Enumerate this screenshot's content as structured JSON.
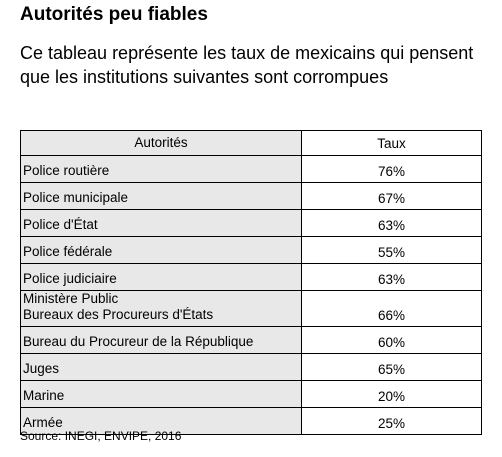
{
  "header": {
    "title": "Autorités peu fiables",
    "subtitle": "Ce tableau représente les taux de mexicains qui pensent que les institutions suivantes sont corrompues"
  },
  "table": {
    "columns": [
      "Autorités",
      "Taux"
    ],
    "rows": [
      [
        "Police routière",
        "76%"
      ],
      [
        "Police municipale",
        "67%"
      ],
      [
        "Police d'État",
        "63%"
      ],
      [
        "Police fédérale",
        "55%"
      ],
      [
        "Police judiciaire",
        "63%"
      ],
      [
        "Ministère Public\nBureaux des Procureurs d'États",
        "66%"
      ],
      [
        "Bureau du Procureur de la République",
        "60%"
      ],
      [
        "Juges",
        "65%"
      ],
      [
        "Marine",
        "20%"
      ],
      [
        "Armée",
        "25%"
      ]
    ]
  },
  "footer": {
    "source": "Source: INEGI, ENVIPE, 2016"
  }
}
